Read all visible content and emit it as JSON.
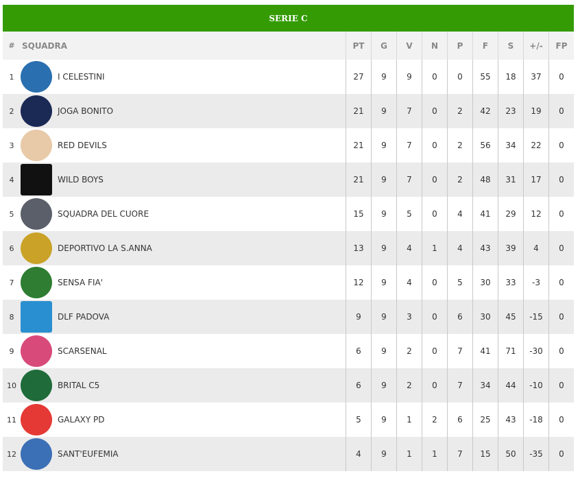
{
  "title": "SERIE C",
  "headers": {
    "pos": "#",
    "team": "SQUADRA",
    "cols": [
      "PT",
      "G",
      "V",
      "N",
      "P",
      "F",
      "S",
      "+/-",
      "FP"
    ]
  },
  "rows": [
    {
      "pos": "1",
      "team": "I CELESTINI",
      "logo_color": "#2a6fb0",
      "stats": [
        "27",
        "9",
        "9",
        "0",
        "0",
        "55",
        "18",
        "37",
        "0"
      ]
    },
    {
      "pos": "2",
      "team": "JOGA BONITO",
      "logo_color": "#1b2a55",
      "stats": [
        "21",
        "9",
        "7",
        "0",
        "2",
        "42",
        "23",
        "19",
        "0"
      ]
    },
    {
      "pos": "3",
      "team": "RED DEVILS",
      "logo_color": "#e8c9a8",
      "stats": [
        "21",
        "9",
        "7",
        "0",
        "2",
        "56",
        "34",
        "22",
        "0"
      ]
    },
    {
      "pos": "4",
      "team": "WILD BOYS",
      "logo_color": "#111111",
      "stats": [
        "21",
        "9",
        "7",
        "0",
        "2",
        "48",
        "31",
        "17",
        "0"
      ]
    },
    {
      "pos": "5",
      "team": "SQUADRA DEL CUORE",
      "logo_color": "#5a5f6a",
      "stats": [
        "15",
        "9",
        "5",
        "0",
        "4",
        "41",
        "29",
        "12",
        "0"
      ]
    },
    {
      "pos": "6",
      "team": "DEPORTIVO LA S.ANNA",
      "logo_color": "#c9a227",
      "stats": [
        "13",
        "9",
        "4",
        "1",
        "4",
        "43",
        "39",
        "4",
        "0"
      ]
    },
    {
      "pos": "7",
      "team": "SENSA FIA'",
      "logo_color": "#2e7d32",
      "stats": [
        "12",
        "9",
        "4",
        "0",
        "5",
        "30",
        "33",
        "-3",
        "0"
      ]
    },
    {
      "pos": "8",
      "team": "DLF PADOVA",
      "logo_color": "#2a8fd0",
      "stats": [
        "9",
        "9",
        "3",
        "0",
        "6",
        "30",
        "45",
        "-15",
        "0"
      ]
    },
    {
      "pos": "9",
      "team": "SCARSENAL",
      "logo_color": "#d84a7a",
      "stats": [
        "6",
        "9",
        "2",
        "0",
        "7",
        "41",
        "71",
        "-30",
        "0"
      ]
    },
    {
      "pos": "10",
      "team": "BRITAL C5",
      "logo_color": "#1f6b3a",
      "stats": [
        "6",
        "9",
        "2",
        "0",
        "7",
        "34",
        "44",
        "-10",
        "0"
      ]
    },
    {
      "pos": "11",
      "team": "GALAXY PD",
      "logo_color": "#e53935",
      "stats": [
        "5",
        "9",
        "1",
        "2",
        "6",
        "25",
        "43",
        "-18",
        "0"
      ]
    },
    {
      "pos": "12",
      "team": "SANT'EUFEMIA",
      "logo_color": "#3b6fb6",
      "stats": [
        "4",
        "9",
        "1",
        "1",
        "7",
        "15",
        "50",
        "-35",
        "0"
      ]
    }
  ]
}
